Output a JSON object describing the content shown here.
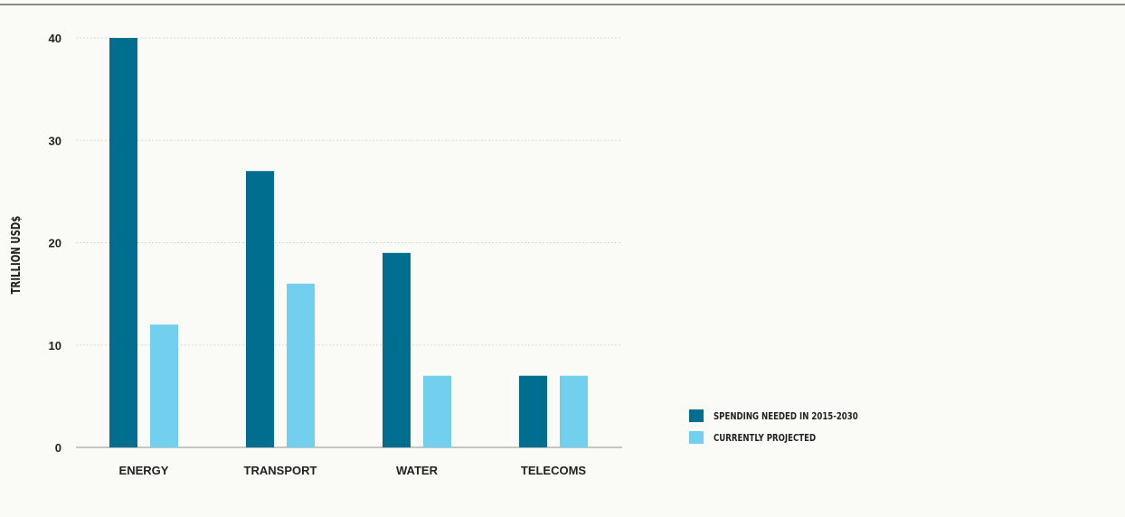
{
  "chart_data": {
    "type": "bar",
    "categories": [
      "ENERGY",
      "TRANSPORT",
      "WATER",
      "TELECOMS"
    ],
    "series": [
      {
        "name": "SPENDING NEEDED IN 2015-2030",
        "values": [
          40,
          27,
          19,
          7
        ],
        "color": "#006e8f"
      },
      {
        "name": "CURRENTLY PROJECTED",
        "values": [
          12,
          16,
          7,
          7
        ],
        "color": "#72cfee"
      }
    ],
    "title": "",
    "xlabel": "",
    "ylabel": "TRILLION USD$",
    "ylim": [
      0,
      40
    ],
    "yticks": [
      0,
      10,
      20,
      30,
      40
    ],
    "grid": true,
    "legend_position": "bottom-right"
  },
  "colors": {
    "background": "#fafaf6",
    "grid": "#cfcfc6",
    "axis": "#b5b5ad"
  }
}
